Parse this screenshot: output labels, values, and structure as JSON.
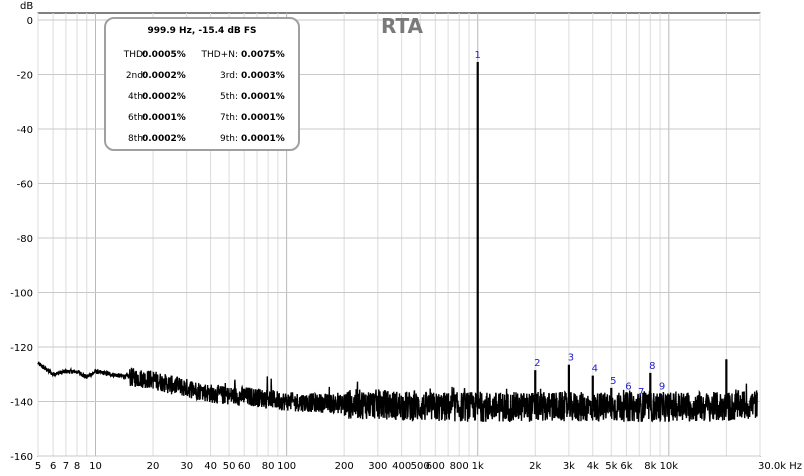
{
  "chart_data": {
    "type": "line",
    "title": "RTA",
    "ylabel": "dB",
    "xunit": "Hz",
    "xscale": "log",
    "xlim": [
      5,
      30000
    ],
    "ylim": [
      -160,
      0
    ],
    "grid": true,
    "y_ticks": [
      "0",
      "-20",
      "-40",
      "-60",
      "-80",
      "-100",
      "-120",
      "-140",
      "-160"
    ],
    "x_ticks": [
      {
        "v": 5,
        "label": "5"
      },
      {
        "v": 6,
        "label": "6"
      },
      {
        "v": 7,
        "label": "7"
      },
      {
        "v": 8,
        "label": "8"
      },
      {
        "v": 10,
        "label": "10"
      },
      {
        "v": 20,
        "label": "20"
      },
      {
        "v": 30,
        "label": "30"
      },
      {
        "v": 40,
        "label": "40"
      },
      {
        "v": 50,
        "label": "50"
      },
      {
        "v": 60,
        "label": "60"
      },
      {
        "v": 80,
        "label": "80"
      },
      {
        "v": 100,
        "label": "100"
      },
      {
        "v": 200,
        "label": "200"
      },
      {
        "v": 300,
        "label": "300"
      },
      {
        "v": 400,
        "label": "400"
      },
      {
        "v": 500,
        "label": "500"
      },
      {
        "v": 600,
        "label": "600"
      },
      {
        "v": 800,
        "label": "800"
      },
      {
        "v": 1000,
        "label": "1k"
      },
      {
        "v": 2000,
        "label": "2k"
      },
      {
        "v": 3000,
        "label": "3k"
      },
      {
        "v": 4000,
        "label": "4k"
      },
      {
        "v": 5000,
        "label": "5k"
      },
      {
        "v": 6000,
        "label": "6k"
      },
      {
        "v": 8000,
        "label": "8k"
      },
      {
        "v": 10000,
        "label": "10k"
      },
      {
        "v": 30000,
        "label": "30.0k Hz"
      }
    ],
    "noise_floor": [
      {
        "x": 5,
        "y": -126
      },
      {
        "x": 6,
        "y": -130
      },
      {
        "x": 7,
        "y": -129
      },
      {
        "x": 8,
        "y": -129
      },
      {
        "x": 9,
        "y": -131
      },
      {
        "x": 10,
        "y": -129
      },
      {
        "x": 12,
        "y": -130
      },
      {
        "x": 15,
        "y": -131
      },
      {
        "x": 20,
        "y": -132
      },
      {
        "x": 25,
        "y": -134
      },
      {
        "x": 30,
        "y": -135
      },
      {
        "x": 40,
        "y": -137
      },
      {
        "x": 50,
        "y": -138
      },
      {
        "x": 60,
        "y": -138
      },
      {
        "x": 80,
        "y": -139
      },
      {
        "x": 100,
        "y": -140
      },
      {
        "x": 200,
        "y": -141
      },
      {
        "x": 300,
        "y": -141
      },
      {
        "x": 500,
        "y": -142
      },
      {
        "x": 800,
        "y": -142
      },
      {
        "x": 1000,
        "y": -142
      },
      {
        "x": 2000,
        "y": -142
      },
      {
        "x": 5000,
        "y": -142
      },
      {
        "x": 10000,
        "y": -142
      },
      {
        "x": 20000,
        "y": -142
      },
      {
        "x": 29000,
        "y": -141
      }
    ],
    "peaks": [
      {
        "x": 1000,
        "y": -15.4,
        "label": "1"
      },
      {
        "x": 2000,
        "y": -128.5,
        "label": "2"
      },
      {
        "x": 3000,
        "y": -126.5,
        "label": "3"
      },
      {
        "x": 4000,
        "y": -130.5,
        "label": "4"
      },
      {
        "x": 5000,
        "y": -135,
        "label": "5"
      },
      {
        "x": 6000,
        "y": -137,
        "label": "6"
      },
      {
        "x": 7000,
        "y": -139,
        "label": "7"
      },
      {
        "x": 8000,
        "y": -129.5,
        "label": "8"
      },
      {
        "x": 9000,
        "y": -137,
        "label": "9"
      },
      {
        "x": 20000,
        "y": -124.5,
        "label": ""
      }
    ]
  },
  "info": {
    "header": "999.9 Hz, -15.4 dB FS",
    "rows": [
      {
        "l1": "THD:",
        "v1": "0.0005%",
        "l2": "THD+N:",
        "v2": "0.0075%"
      },
      {
        "l1": "2nd:",
        "v1": "0.0002%",
        "l2": "3rd:",
        "v2": "0.0003%"
      },
      {
        "l1": "4th:",
        "v1": "0.0002%",
        "l2": "5th:",
        "v2": "0.0001%"
      },
      {
        "l1": "6th:",
        "v1": "0.0001%",
        "l2": "7th:",
        "v2": "0.0001%"
      },
      {
        "l1": "8th:",
        "v1": "0.0002%",
        "l2": "9th:",
        "v2": "0.0001%"
      }
    ]
  }
}
